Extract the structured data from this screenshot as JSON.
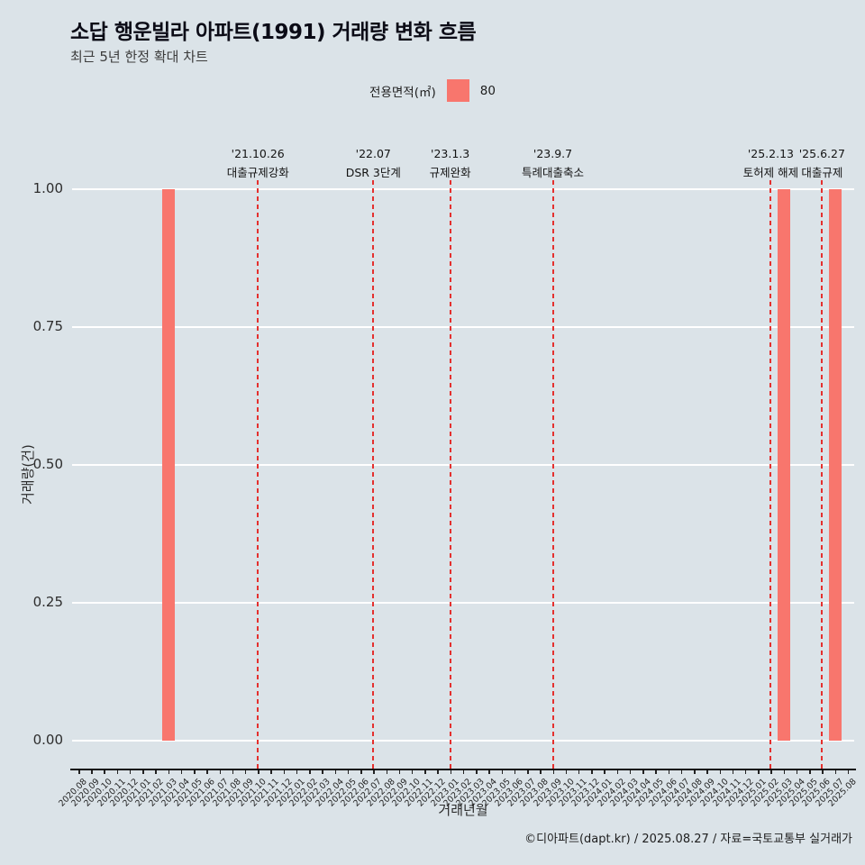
{
  "title": "소답 행운빌라 아파트(1991) 거래량 변화 흐름",
  "subtitle": "최근 5년 한정 확대 차트",
  "legend": {
    "label": "전용면적(㎡)",
    "value": "80",
    "swatch_color": "#f8766d"
  },
  "caption": "©디아파트(dapt.kr) / 2025.08.27 / 자료=국토교통부 실거래가",
  "chart_data": {
    "type": "bar",
    "title": "소답 행운빌라 아파트(1991) 거래량 변화 흐름",
    "subtitle": "최근 5년 한정 확대 차트",
    "xlabel": "거래년월",
    "ylabel": "거래량(건)",
    "ylim": [
      0,
      1
    ],
    "yticks": [
      "0.00",
      "0.25",
      "0.50",
      "0.75",
      "1.00"
    ],
    "grid": "horizontal-white",
    "legend_position": "top-center",
    "bar_color": "#f8766d",
    "background": "#dbe3e8",
    "gridline_color": "#ffffff",
    "event_line_color": "#e4302e",
    "series_name": "80",
    "categories": [
      "2020.08",
      "2020.09",
      "2020.10",
      "2020.11",
      "2020.12",
      "2021.01",
      "2021.02",
      "2021.03",
      "2021.04",
      "2021.05",
      "2021.06",
      "2021.07",
      "2021.08",
      "2021.09",
      "2021.10",
      "2021.11",
      "2021.12",
      "2022.01",
      "2022.02",
      "2022.03",
      "2022.04",
      "2022.05",
      "2022.06",
      "2022.07",
      "2022.08",
      "2022.09",
      "2022.10",
      "2022.11",
      "2022.12",
      "2023.01",
      "2023.02",
      "2023.03",
      "2023.04",
      "2023.05",
      "2023.06",
      "2023.07",
      "2023.08",
      "2023.09",
      "2023.10",
      "2023.11",
      "2023.12",
      "2024.01",
      "2024.02",
      "2024.03",
      "2024.04",
      "2024.05",
      "2024.06",
      "2024.07",
      "2024.08",
      "2024.09",
      "2024.10",
      "2024.11",
      "2024.12",
      "2025.01",
      "2025.02",
      "2025.03",
      "2025.04",
      "2025.05",
      "2025.06",
      "2025.07",
      "2025.08"
    ],
    "values": [
      0,
      0,
      0,
      0,
      0,
      0,
      0,
      1,
      0,
      0,
      0,
      0,
      0,
      0,
      0,
      0,
      0,
      0,
      0,
      0,
      0,
      0,
      0,
      0,
      0,
      0,
      0,
      0,
      0,
      0,
      0,
      0,
      0,
      0,
      0,
      0,
      0,
      0,
      0,
      0,
      0,
      0,
      0,
      0,
      0,
      0,
      0,
      0,
      0,
      0,
      0,
      0,
      0,
      0,
      0,
      1,
      0,
      0,
      0,
      1,
      0
    ],
    "events": [
      {
        "date": "'21.10.26",
        "label": "대출규제강화",
        "month": "2021.10"
      },
      {
        "date": "'22.07",
        "label": "DSR 3단계",
        "month": "2022.07"
      },
      {
        "date": "'23.1.3",
        "label": "규제완화",
        "month": "2023.01"
      },
      {
        "date": "'23.9.7",
        "label": "특례대출축소",
        "month": "2023.09"
      },
      {
        "date": "'25.2.13",
        "label": "토허제 해제",
        "month": "2025.02"
      },
      {
        "date": "'25.6.27",
        "label": "대출규제",
        "month": "2025.06"
      }
    ]
  }
}
